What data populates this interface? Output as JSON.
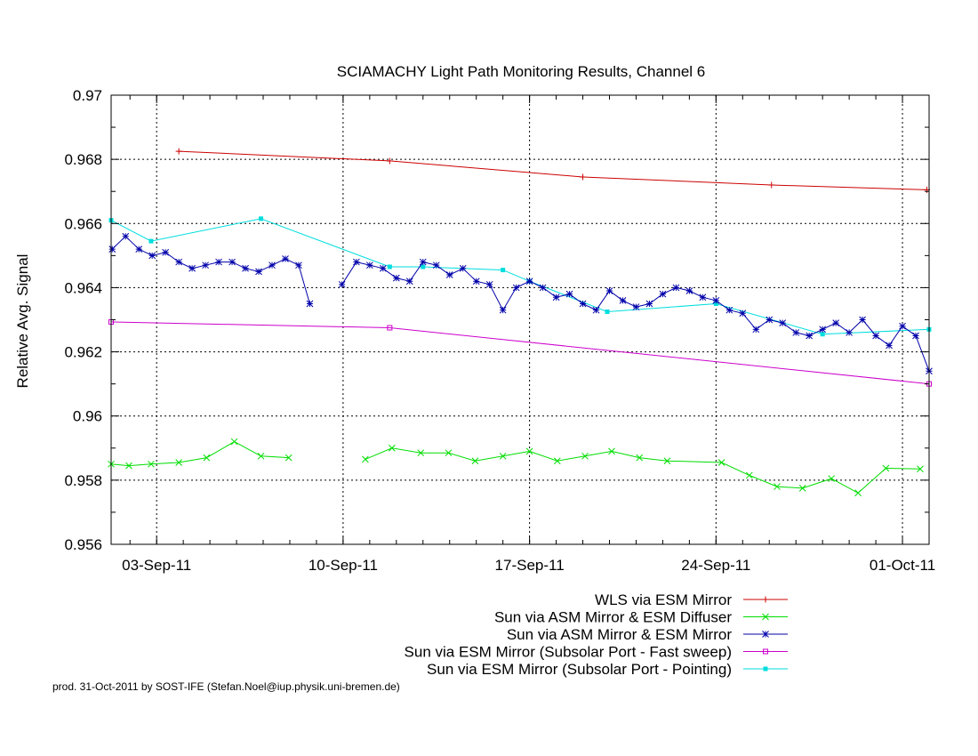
{
  "chart_data": {
    "type": "line",
    "title": "SCIAMACHY Light Path Monitoring Results, Channel 6",
    "ylabel": "Relative Avg. Signal",
    "xlabel": "",
    "ylim": [
      0.956,
      0.97
    ],
    "xlim": [
      "2011-09-01T07:00",
      "2011-10-02T00:00"
    ],
    "yticks": [
      0.956,
      0.958,
      0.96,
      0.962,
      0.964,
      0.966,
      0.968,
      0.97
    ],
    "ytick_labels": [
      "0.956",
      "0.958",
      "0.96",
      "0.962",
      "0.964",
      "0.966",
      "0.968",
      "0.97"
    ],
    "xticks": [
      "2011-09-03",
      "2011-09-10",
      "2011-09-17",
      "2011-09-24",
      "2011-10-01"
    ],
    "xtick_labels": [
      "03-Sep-11",
      "10-Sep-11",
      "17-Sep-11",
      "24-Sep-11",
      "01-Oct-11"
    ],
    "grid": "dashed at major ticks",
    "legend_position": "below plot, right-aligned",
    "series": [
      {
        "name": "WLS via ESM Mirror",
        "color": "#cc0000",
        "marker": "plus",
        "x": [
          "2011-09-03T20:00",
          "2011-09-11T18:00",
          "2011-09-19T00:00",
          "2011-09-26T02:00",
          "2011-10-01T22:00"
        ],
        "y": [
          0.96825,
          0.96795,
          0.96745,
          0.9672,
          0.96705
        ]
      },
      {
        "name": "Sun via ASM Mirror & ESM Diffuser",
        "color": "#00dd00",
        "marker": "cross",
        "segments": [
          {
            "x": [
              "2011-09-01T07:00",
              "2011-09-01T23:00",
              "2011-09-02T19:00",
              "2011-09-03T20:00",
              "2011-09-04T21:00",
              "2011-09-05T22:00",
              "2011-09-06T22:00",
              "2011-09-07T23:00"
            ],
            "y": [
              0.9585,
              0.95845,
              0.9585,
              0.95855,
              0.9587,
              0.9592,
              0.95875,
              0.9587
            ]
          },
          {
            "x": [
              "2011-09-10T20:00",
              "2011-09-11T20:00",
              "2011-09-12T22:00",
              "2011-09-13T23:00",
              "2011-09-14T23:00",
              "2011-09-16T00:00",
              "2011-09-17T00:00",
              "2011-09-18T01:00",
              "2011-09-19T02:00",
              "2011-09-20T02:00",
              "2011-09-21T03:00",
              "2011-09-22T04:00",
              "2011-09-24T05:00",
              "2011-09-25T06:00",
              "2011-09-26T07:00",
              "2011-09-27T06:00",
              "2011-09-28T08:00",
              "2011-09-29T08:00",
              "2011-09-30T09:00",
              "2011-10-01T16:00"
            ],
            "y": [
              0.95865,
              0.959,
              0.95885,
              0.95885,
              0.9586,
              0.95875,
              0.9589,
              0.9586,
              0.95875,
              0.9589,
              0.9587,
              0.9586,
              0.95855,
              0.95815,
              0.9578,
              0.95775,
              0.95805,
              0.9576,
              0.95837,
              0.95835
            ]
          }
        ]
      },
      {
        "name": "Sun via ASM Mirror & ESM Mirror",
        "color": "#0000aa",
        "marker": "star",
        "segments": [
          {
            "x": [
              "2011-09-01T08:00",
              "2011-09-01T20:00",
              "2011-09-02T08:00",
              "2011-09-02T20:00",
              "2011-09-03T08:00",
              "2011-09-03T20:00",
              "2011-09-04T08:00",
              "2011-09-04T20:00",
              "2011-09-05T08:00",
              "2011-09-05T20:00",
              "2011-09-06T08:00",
              "2011-09-06T20:00",
              "2011-09-07T08:00",
              "2011-09-07T20:00",
              "2011-09-08T08:00",
              "2011-09-08T18:00"
            ],
            "y": [
              0.9652,
              0.9656,
              0.9652,
              0.965,
              0.9651,
              0.9648,
              0.9646,
              0.9647,
              0.9648,
              0.9648,
              0.9646,
              0.9645,
              0.9647,
              0.9649,
              0.9647,
              0.9635
            ]
          },
          {
            "x": [
              "2011-09-09T23:00",
              "2011-09-10T12:00",
              "2011-09-11T00:00",
              "2011-09-11T12:00",
              "2011-09-12T00:00",
              "2011-09-12T12:00",
              "2011-09-13T00:00",
              "2011-09-13T12:00",
              "2011-09-14T00:00",
              "2011-09-14T12:00",
              "2011-09-15T00:00",
              "2011-09-15T12:00",
              "2011-09-16T00:00",
              "2011-09-16T12:00",
              "2011-09-17T00:00",
              "2011-09-17T12:00",
              "2011-09-18T00:00",
              "2011-09-18T12:00",
              "2011-09-19T00:00",
              "2011-09-19T12:00",
              "2011-09-20T00:00",
              "2011-09-20T12:00",
              "2011-09-21T00:00",
              "2011-09-21T12:00",
              "2011-09-22T00:00",
              "2011-09-22T12:00",
              "2011-09-23T00:00",
              "2011-09-23T12:00",
              "2011-09-24T00:00",
              "2011-09-24T12:00",
              "2011-09-25T00:00",
              "2011-09-25T12:00",
              "2011-09-26T00:00",
              "2011-09-26T12:00",
              "2011-09-27T00:00",
              "2011-09-27T12:00",
              "2011-09-28T00:00",
              "2011-09-28T12:00",
              "2011-09-29T00:00",
              "2011-09-29T12:00",
              "2011-09-30T00:00",
              "2011-09-30T12:00",
              "2011-10-01T00:00",
              "2011-10-01T12:00",
              "2011-10-02T00:00"
            ],
            "y": [
              0.9641,
              0.9648,
              0.9647,
              0.9646,
              0.9643,
              0.9642,
              0.9648,
              0.9647,
              0.9644,
              0.9646,
              0.9642,
              0.9641,
              0.9633,
              0.964,
              0.9642,
              0.964,
              0.9637,
              0.9638,
              0.9635,
              0.9633,
              0.9639,
              0.9636,
              0.9634,
              0.9635,
              0.9638,
              0.964,
              0.9639,
              0.9637,
              0.9636,
              0.9633,
              0.9632,
              0.9627,
              0.963,
              0.9629,
              0.9626,
              0.9625,
              0.9627,
              0.9629,
              0.9626,
              0.963,
              0.9625,
              0.9622,
              0.9628,
              0.9625,
              0.9614
            ]
          }
        ]
      },
      {
        "name": "Sun via ESM Mirror (Subsolar Port - Fast sweep)",
        "color": "#cc00cc",
        "marker": "square",
        "x": [
          "2011-09-01T07:00",
          "2011-09-11T18:00",
          "2011-10-02T00:00"
        ],
        "y": [
          0.96293,
          0.96275,
          0.961
        ]
      },
      {
        "name": "Sun via ESM Mirror (Subsolar Port - Pointing)",
        "color": "#00dddd",
        "marker": "filled-square",
        "x": [
          "2011-09-01T07:00",
          "2011-09-02T19:00",
          "2011-09-06T22:00",
          "2011-09-11T18:00",
          "2011-09-13T00:00",
          "2011-09-16T00:00",
          "2011-09-17T00:00",
          "2011-09-19T22:00",
          "2011-09-24T00:00",
          "2011-09-28T00:00",
          "2011-10-02T00:00"
        ],
        "y": [
          0.9661,
          0.96545,
          0.96615,
          0.96465,
          0.96465,
          0.96455,
          0.9642,
          0.96325,
          0.9635,
          0.96255,
          0.9627
        ]
      }
    ]
  },
  "legend": {
    "items": [
      {
        "label": "WLS via ESM Mirror",
        "color": "#cc0000"
      },
      {
        "label": "Sun via ASM Mirror & ESM Diffuser",
        "color": "#00dd00"
      },
      {
        "label": "Sun via ASM Mirror & ESM Mirror",
        "color": "#0000aa"
      },
      {
        "label": "Sun via ESM Mirror (Subsolar Port - Fast sweep)",
        "color": "#cc00cc"
      },
      {
        "label": "Sun via ESM Mirror (Subsolar Port - Pointing)",
        "color": "#00dddd"
      }
    ]
  },
  "footer": {
    "text": "prod. 31-Oct-2011 by SOST-IFE (Stefan.Noel@iup.physik.uni-bremen.de)"
  }
}
